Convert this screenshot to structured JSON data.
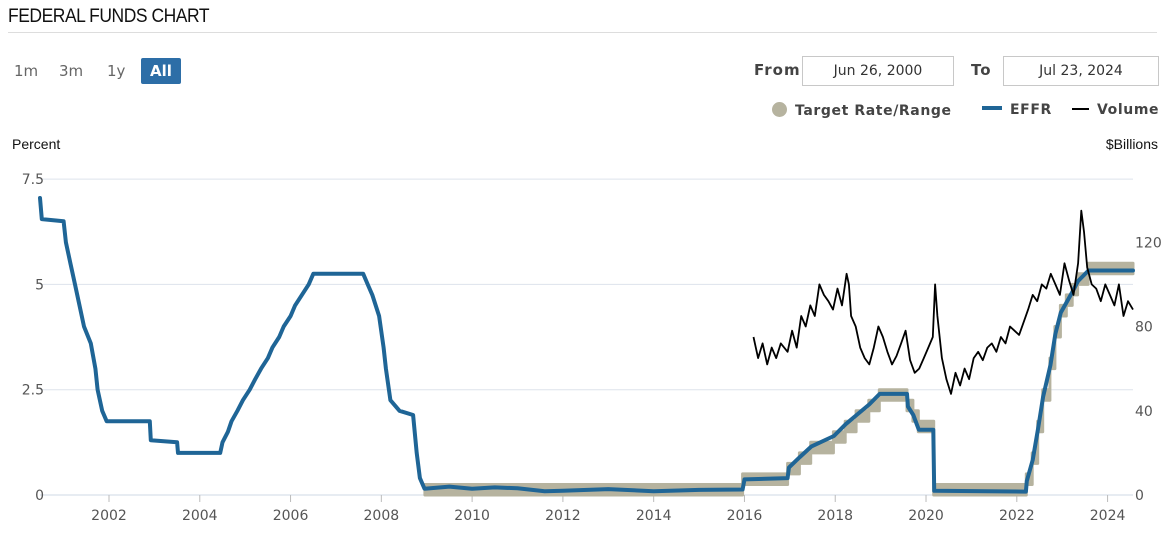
{
  "header": {
    "title": "FEDERAL FUNDS CHART"
  },
  "range_buttons": [
    {
      "label": "1m",
      "active": false
    },
    {
      "label": "3m",
      "active": false
    },
    {
      "label": "1y",
      "active": false
    },
    {
      "label": "All",
      "active": true
    }
  ],
  "date_range": {
    "from_label": "From",
    "from_value": "Jun 26, 2000",
    "to_label": "To",
    "to_value": "Jul 23, 2024"
  },
  "legend": [
    {
      "name": "Target Rate/Range",
      "color": "#b6b39f",
      "icon": "dot-icon"
    },
    {
      "name": "EFFR",
      "color": "#1f6596",
      "icon": "line-icon"
    },
    {
      "name": "Volume",
      "color": "#000000",
      "icon": "line-icon"
    }
  ],
  "chart_data": {
    "type": "line",
    "title": "",
    "ylabel": "Percent",
    "y2label": "$Billions",
    "ylim": [
      0,
      8
    ],
    "y2lim": [
      0,
      160
    ],
    "yticks": [
      "0",
      "2.5",
      "5",
      "7.5"
    ],
    "y2ticks": [
      "0",
      "40",
      "80",
      "120"
    ],
    "xlim": [
      2000.48,
      2024.56
    ],
    "xticks": [
      "2002",
      "2004",
      "2006",
      "2008",
      "2010",
      "2012",
      "2014",
      "2016",
      "2018",
      "2020",
      "2022",
      "2024"
    ],
    "grid": true,
    "legend_position": "top-right",
    "series": [
      {
        "name": "Target Rate/Range",
        "axis": "left",
        "color": "#b6b39f",
        "lower": [
          [
            2008.96,
            0
          ],
          [
            2015.96,
            0
          ],
          [
            2015.96,
            0.25
          ],
          [
            2016.95,
            0.25
          ],
          [
            2016.95,
            0.5
          ],
          [
            2017.21,
            0.5
          ],
          [
            2017.21,
            0.75
          ],
          [
            2017.46,
            0.75
          ],
          [
            2017.46,
            1.0
          ],
          [
            2017.96,
            1.0
          ],
          [
            2017.96,
            1.25
          ],
          [
            2018.22,
            1.25
          ],
          [
            2018.22,
            1.5
          ],
          [
            2018.46,
            1.5
          ],
          [
            2018.46,
            1.75
          ],
          [
            2018.74,
            1.75
          ],
          [
            2018.74,
            2.0
          ],
          [
            2018.97,
            2.0
          ],
          [
            2018.97,
            2.25
          ],
          [
            2019.58,
            2.25
          ],
          [
            2019.58,
            2.0
          ],
          [
            2019.71,
            2.0
          ],
          [
            2019.71,
            1.75
          ],
          [
            2019.83,
            1.75
          ],
          [
            2019.83,
            1.5
          ],
          [
            2020.17,
            1.5
          ],
          [
            2020.17,
            0
          ],
          [
            2022.21,
            0
          ],
          [
            2022.21,
            0.25
          ],
          [
            2022.34,
            0.25
          ],
          [
            2022.34,
            0.75
          ],
          [
            2022.46,
            0.75
          ],
          [
            2022.46,
            1.5
          ],
          [
            2022.57,
            1.5
          ],
          [
            2022.57,
            2.25
          ],
          [
            2022.73,
            2.25
          ],
          [
            2022.73,
            3.0
          ],
          [
            2022.84,
            3.0
          ],
          [
            2022.84,
            3.75
          ],
          [
            2022.96,
            3.75
          ],
          [
            2022.96,
            4.25
          ],
          [
            2023.09,
            4.25
          ],
          [
            2023.09,
            4.5
          ],
          [
            2023.22,
            4.5
          ],
          [
            2023.22,
            4.75
          ],
          [
            2023.34,
            4.75
          ],
          [
            2023.34,
            5.0
          ],
          [
            2023.57,
            5.0
          ],
          [
            2023.57,
            5.25
          ],
          [
            2024.56,
            5.25
          ]
        ],
        "upper": [
          [
            2008.96,
            0.25
          ],
          [
            2015.96,
            0.25
          ],
          [
            2015.96,
            0.5
          ],
          [
            2016.95,
            0.5
          ],
          [
            2016.95,
            0.75
          ],
          [
            2017.21,
            0.75
          ],
          [
            2017.21,
            1.0
          ],
          [
            2017.46,
            1.0
          ],
          [
            2017.46,
            1.25
          ],
          [
            2017.96,
            1.25
          ],
          [
            2017.96,
            1.5
          ],
          [
            2018.22,
            1.5
          ],
          [
            2018.22,
            1.75
          ],
          [
            2018.46,
            1.75
          ],
          [
            2018.46,
            2.0
          ],
          [
            2018.74,
            2.0
          ],
          [
            2018.74,
            2.25
          ],
          [
            2018.97,
            2.25
          ],
          [
            2018.97,
            2.5
          ],
          [
            2019.58,
            2.5
          ],
          [
            2019.58,
            2.25
          ],
          [
            2019.71,
            2.25
          ],
          [
            2019.71,
            2.0
          ],
          [
            2019.83,
            2.0
          ],
          [
            2019.83,
            1.75
          ],
          [
            2020.17,
            1.75
          ],
          [
            2020.17,
            0.25
          ],
          [
            2022.21,
            0.25
          ],
          [
            2022.21,
            0.5
          ],
          [
            2022.34,
            0.5
          ],
          [
            2022.34,
            1.0
          ],
          [
            2022.46,
            1.0
          ],
          [
            2022.46,
            1.75
          ],
          [
            2022.57,
            1.75
          ],
          [
            2022.57,
            2.5
          ],
          [
            2022.73,
            2.5
          ],
          [
            2022.73,
            3.25
          ],
          [
            2022.84,
            3.25
          ],
          [
            2022.84,
            4.0
          ],
          [
            2022.96,
            4.0
          ],
          [
            2022.96,
            4.5
          ],
          [
            2023.09,
            4.5
          ],
          [
            2023.09,
            4.75
          ],
          [
            2023.22,
            4.75
          ],
          [
            2023.22,
            5.0
          ],
          [
            2023.34,
            5.0
          ],
          [
            2023.34,
            5.25
          ],
          [
            2023.57,
            5.25
          ],
          [
            2023.57,
            5.5
          ],
          [
            2024.56,
            5.5
          ]
        ]
      },
      {
        "name": "EFFR",
        "axis": "left",
        "color": "#1f6596",
        "points": [
          [
            2000.48,
            7.05
          ],
          [
            2000.52,
            6.55
          ],
          [
            2001.0,
            6.5
          ],
          [
            2001.05,
            6.0
          ],
          [
            2001.15,
            5.5
          ],
          [
            2001.25,
            5.0
          ],
          [
            2001.35,
            4.5
          ],
          [
            2001.45,
            4.0
          ],
          [
            2001.6,
            3.6
          ],
          [
            2001.7,
            3.0
          ],
          [
            2001.75,
            2.5
          ],
          [
            2001.85,
            2.0
          ],
          [
            2001.95,
            1.75
          ],
          [
            2002.9,
            1.75
          ],
          [
            2002.92,
            1.3
          ],
          [
            2003.5,
            1.25
          ],
          [
            2003.52,
            1.0
          ],
          [
            2004.45,
            1.0
          ],
          [
            2004.5,
            1.25
          ],
          [
            2004.62,
            1.5
          ],
          [
            2004.7,
            1.75
          ],
          [
            2004.83,
            2.0
          ],
          [
            2004.95,
            2.25
          ],
          [
            2005.1,
            2.5
          ],
          [
            2005.22,
            2.75
          ],
          [
            2005.35,
            3.0
          ],
          [
            2005.5,
            3.25
          ],
          [
            2005.6,
            3.5
          ],
          [
            2005.75,
            3.75
          ],
          [
            2005.85,
            4.0
          ],
          [
            2006.0,
            4.25
          ],
          [
            2006.1,
            4.5
          ],
          [
            2006.25,
            4.75
          ],
          [
            2006.4,
            5.0
          ],
          [
            2006.5,
            5.25
          ],
          [
            2007.6,
            5.25
          ],
          [
            2007.7,
            5.0
          ],
          [
            2007.8,
            4.75
          ],
          [
            2007.95,
            4.25
          ],
          [
            2008.05,
            3.5
          ],
          [
            2008.1,
            3.0
          ],
          [
            2008.2,
            2.25
          ],
          [
            2008.4,
            2.0
          ],
          [
            2008.7,
            1.9
          ],
          [
            2008.78,
            1.0
          ],
          [
            2008.85,
            0.4
          ],
          [
            2008.95,
            0.15
          ],
          [
            2009.5,
            0.2
          ],
          [
            2010.0,
            0.15
          ],
          [
            2010.5,
            0.18
          ],
          [
            2011.0,
            0.16
          ],
          [
            2011.6,
            0.09
          ],
          [
            2012.0,
            0.1
          ],
          [
            2013.0,
            0.14
          ],
          [
            2014.0,
            0.09
          ],
          [
            2015.0,
            0.12
          ],
          [
            2015.96,
            0.13
          ],
          [
            2016.0,
            0.37
          ],
          [
            2016.95,
            0.4
          ],
          [
            2016.98,
            0.65
          ],
          [
            2017.22,
            0.9
          ],
          [
            2017.47,
            1.15
          ],
          [
            2017.97,
            1.4
          ],
          [
            2018.23,
            1.68
          ],
          [
            2018.47,
            1.9
          ],
          [
            2018.75,
            2.15
          ],
          [
            2018.98,
            2.4
          ],
          [
            2019.58,
            2.4
          ],
          [
            2019.6,
            2.1
          ],
          [
            2019.72,
            1.9
          ],
          [
            2019.84,
            1.55
          ],
          [
            2020.16,
            1.55
          ],
          [
            2020.18,
            0.1
          ],
          [
            2022.2,
            0.08
          ],
          [
            2022.22,
            0.33
          ],
          [
            2022.35,
            0.83
          ],
          [
            2022.47,
            1.58
          ],
          [
            2022.58,
            2.33
          ],
          [
            2022.74,
            3.08
          ],
          [
            2022.85,
            3.83
          ],
          [
            2022.97,
            4.33
          ],
          [
            2023.1,
            4.58
          ],
          [
            2023.23,
            4.83
          ],
          [
            2023.35,
            5.08
          ],
          [
            2023.58,
            5.33
          ],
          [
            2024.56,
            5.33
          ]
        ]
      },
      {
        "name": "Volume",
        "axis": "right",
        "color": "#000000",
        "points": [
          [
            2016.2,
            75
          ],
          [
            2016.3,
            65
          ],
          [
            2016.4,
            72
          ],
          [
            2016.5,
            62
          ],
          [
            2016.6,
            70
          ],
          [
            2016.7,
            65
          ],
          [
            2016.8,
            72
          ],
          [
            2016.95,
            68
          ],
          [
            2017.05,
            78
          ],
          [
            2017.15,
            70
          ],
          [
            2017.25,
            85
          ],
          [
            2017.35,
            80
          ],
          [
            2017.45,
            90
          ],
          [
            2017.55,
            85
          ],
          [
            2017.65,
            100
          ],
          [
            2017.75,
            95
          ],
          [
            2017.85,
            92
          ],
          [
            2017.95,
            88
          ],
          [
            2018.05,
            98
          ],
          [
            2018.15,
            90
          ],
          [
            2018.25,
            105
          ],
          [
            2018.3,
            100
          ],
          [
            2018.35,
            85
          ],
          [
            2018.45,
            80
          ],
          [
            2018.55,
            70
          ],
          [
            2018.65,
            65
          ],
          [
            2018.75,
            62
          ],
          [
            2018.85,
            70
          ],
          [
            2018.95,
            80
          ],
          [
            2019.05,
            75
          ],
          [
            2019.15,
            68
          ],
          [
            2019.25,
            62
          ],
          [
            2019.35,
            66
          ],
          [
            2019.45,
            72
          ],
          [
            2019.55,
            78
          ],
          [
            2019.65,
            64
          ],
          [
            2019.75,
            58
          ],
          [
            2019.85,
            60
          ],
          [
            2019.95,
            65
          ],
          [
            2020.05,
            70
          ],
          [
            2020.15,
            75
          ],
          [
            2020.2,
            100
          ],
          [
            2020.25,
            85
          ],
          [
            2020.35,
            65
          ],
          [
            2020.45,
            55
          ],
          [
            2020.55,
            48
          ],
          [
            2020.65,
            58
          ],
          [
            2020.75,
            52
          ],
          [
            2020.85,
            60
          ],
          [
            2020.95,
            55
          ],
          [
            2021.05,
            65
          ],
          [
            2021.15,
            68
          ],
          [
            2021.25,
            64
          ],
          [
            2021.35,
            70
          ],
          [
            2021.45,
            72
          ],
          [
            2021.55,
            68
          ],
          [
            2021.65,
            75
          ],
          [
            2021.75,
            72
          ],
          [
            2021.85,
            80
          ],
          [
            2021.95,
            78
          ],
          [
            2022.05,
            76
          ],
          [
            2022.15,
            82
          ],
          [
            2022.25,
            88
          ],
          [
            2022.35,
            95
          ],
          [
            2022.45,
            92
          ],
          [
            2022.55,
            100
          ],
          [
            2022.65,
            98
          ],
          [
            2022.75,
            105
          ],
          [
            2022.85,
            100
          ],
          [
            2022.95,
            95
          ],
          [
            2023.05,
            110
          ],
          [
            2023.15,
            102
          ],
          [
            2023.25,
            95
          ],
          [
            2023.35,
            110
          ],
          [
            2023.42,
            135
          ],
          [
            2023.48,
            125
          ],
          [
            2023.55,
            108
          ],
          [
            2023.65,
            100
          ],
          [
            2023.75,
            98
          ],
          [
            2023.85,
            92
          ],
          [
            2023.95,
            100
          ],
          [
            2024.05,
            95
          ],
          [
            2024.15,
            90
          ],
          [
            2024.25,
            100
          ],
          [
            2024.35,
            85
          ],
          [
            2024.45,
            92
          ],
          [
            2024.56,
            88
          ]
        ]
      }
    ]
  }
}
